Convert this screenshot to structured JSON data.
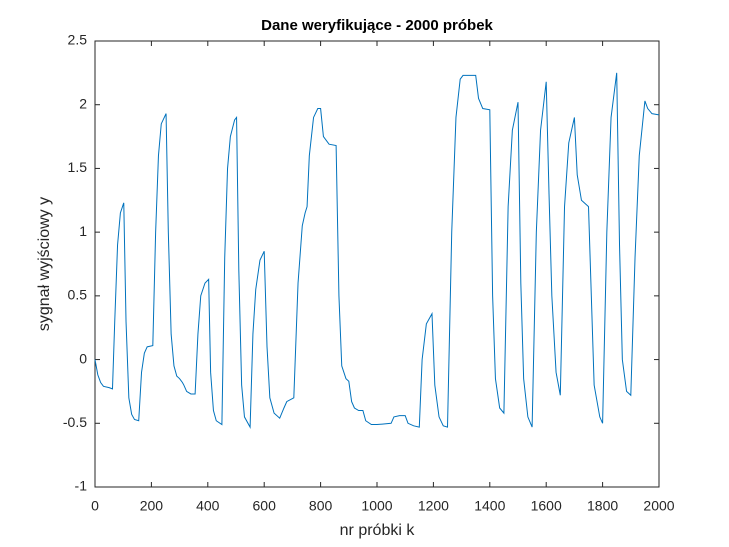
{
  "chart_data": {
    "type": "line",
    "title": "Dane weryfikujące - 2000 próbek",
    "xlabel": "nr próbki k",
    "ylabel": "sygnał wyjściowy y",
    "x": [
      0,
      10,
      20,
      30,
      50,
      62,
      70,
      80,
      90,
      102,
      110,
      120,
      130,
      140,
      155,
      165,
      175,
      185,
      205,
      215,
      225,
      235,
      252,
      260,
      270,
      280,
      290,
      300,
      310,
      315,
      325,
      340,
      355,
      365,
      375,
      390,
      403,
      410,
      420,
      430,
      450,
      460,
      470,
      480,
      495,
      502,
      510,
      520,
      530,
      550,
      560,
      570,
      585,
      600,
      610,
      620,
      635,
      655,
      670,
      680,
      705,
      720,
      735,
      745,
      752,
      760,
      775,
      790,
      800,
      810,
      830,
      855,
      865,
      875,
      890,
      900,
      910,
      920,
      935,
      950,
      960,
      980,
      1000,
      1050,
      1060,
      1080,
      1100,
      1110,
      1130,
      1150,
      1160,
      1175,
      1195,
      1205,
      1220,
      1235,
      1250,
      1265,
      1280,
      1295,
      1305,
      1350,
      1360,
      1375,
      1400,
      1410,
      1420,
      1435,
      1450,
      1465,
      1480,
      1500,
      1510,
      1520,
      1535,
      1550,
      1565,
      1580,
      1600,
      1610,
      1620,
      1635,
      1650,
      1665,
      1680,
      1700,
      1710,
      1725,
      1750,
      1760,
      1770,
      1790,
      1800,
      1815,
      1830,
      1850,
      1860,
      1870,
      1885,
      1900,
      1915,
      1930,
      1950,
      1960,
      1975,
      2000
    ],
    "series": [
      {
        "color": "#0072bd",
        "values": [
          0,
          -0.12,
          -0.18,
          -0.21,
          -0.22,
          -0.23,
          0.3,
          0.9,
          1.15,
          1.23,
          0.3,
          -0.3,
          -0.43,
          -0.47,
          -0.48,
          -0.1,
          0.05,
          0.1,
          0.11,
          1.0,
          1.6,
          1.85,
          1.93,
          1.0,
          0.2,
          -0.05,
          -0.13,
          -0.15,
          -0.18,
          -0.2,
          -0.25,
          -0.27,
          -0.27,
          0.2,
          0.5,
          0.6,
          0.63,
          -0.1,
          -0.4,
          -0.48,
          -0.51,
          0.8,
          1.5,
          1.75,
          1.88,
          1.9,
          0.7,
          -0.2,
          -0.45,
          -0.53,
          0.2,
          0.55,
          0.78,
          0.85,
          0.1,
          -0.3,
          -0.42,
          -0.46,
          -0.38,
          -0.33,
          -0.3,
          0.6,
          1.05,
          1.15,
          1.2,
          1.6,
          1.9,
          1.97,
          1.97,
          1.75,
          1.69,
          1.68,
          0.5,
          -0.05,
          -0.15,
          -0.17,
          -0.33,
          -0.38,
          -0.4,
          -0.4,
          -0.48,
          -0.51,
          -0.51,
          -0.5,
          -0.45,
          -0.44,
          -0.44,
          -0.5,
          -0.52,
          -0.53,
          0,
          0.28,
          0.36,
          -0.2,
          -0.45,
          -0.52,
          -0.53,
          1.0,
          1.9,
          2.2,
          2.23,
          2.23,
          2.05,
          1.97,
          1.96,
          0.5,
          -0.15,
          -0.38,
          -0.42,
          1.2,
          1.8,
          2.02,
          0.6,
          -0.15,
          -0.45,
          -0.53,
          1.0,
          1.8,
          2.18,
          1.3,
          0.5,
          -0.1,
          -0.28,
          1.2,
          1.7,
          1.9,
          1.45,
          1.25,
          1.2,
          0.5,
          -0.2,
          -0.45,
          -0.5,
          1.0,
          1.9,
          2.25,
          0.9,
          0.0,
          -0.25,
          -0.28,
          0.8,
          1.6,
          2.03,
          1.97,
          1.93,
          1.92
        ]
      }
    ],
    "xlim": [
      0,
      2000
    ],
    "xticks": [
      0,
      200,
      400,
      600,
      800,
      1000,
      1200,
      1400,
      1600,
      1800,
      2000
    ],
    "ylim": [
      -1,
      2.5
    ],
    "yticks": [
      -1,
      -0.5,
      0,
      0.5,
      1,
      1.5,
      2,
      2.5
    ]
  }
}
